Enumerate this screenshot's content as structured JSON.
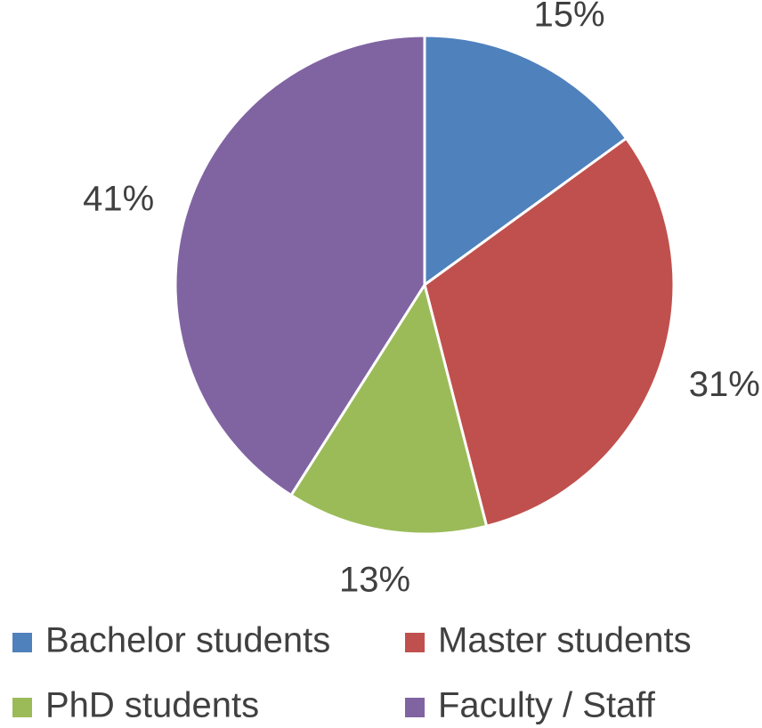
{
  "chart_data": {
    "type": "pie",
    "categories": [
      "Bachelor students",
      "Master students",
      "PhD students",
      "Faculty / Staff"
    ],
    "values": [
      15,
      31,
      13,
      41
    ],
    "value_labels": [
      "15%",
      "31%",
      "13%",
      "41%"
    ],
    "colors": [
      "#4f81bd",
      "#c0504d",
      "#9bbb59",
      "#8064a2"
    ],
    "legend": "bottom"
  }
}
